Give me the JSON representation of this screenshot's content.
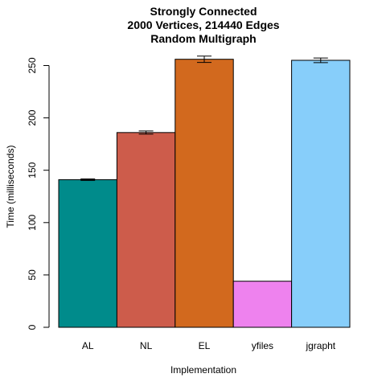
{
  "chart_data": {
    "type": "bar",
    "title_lines": [
      "Strongly Connected",
      "2000 Vertices, 214440 Edges",
      "Random Multigraph"
    ],
    "xlabel": "Implementation",
    "ylabel": "Time (milliseconds)",
    "categories": [
      "AL",
      "NL",
      "EL",
      "yfiles",
      "jgrapht"
    ],
    "values": [
      141,
      186,
      256,
      44,
      255
    ],
    "errors": [
      0.7,
      1.5,
      3,
      0,
      2.2
    ],
    "colors": [
      "#008b8b",
      "#cd5c4b",
      "#d2691e",
      "#ee82ee",
      "#87cefa"
    ],
    "yticks": [
      0,
      50,
      100,
      150,
      200,
      250
    ],
    "ylim": [
      0,
      260
    ],
    "grid": false,
    "legend": "none"
  }
}
